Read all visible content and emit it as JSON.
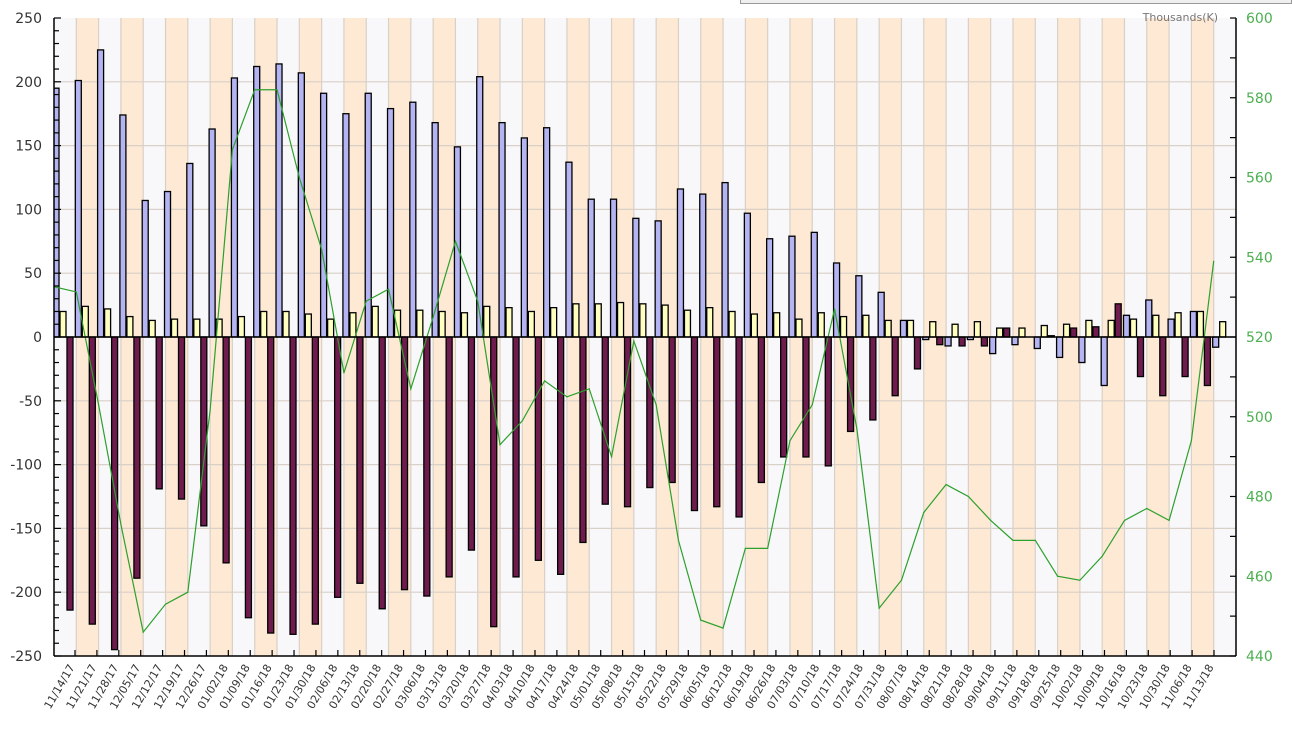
{
  "chart_data": {
    "type": "bar",
    "title": "",
    "xlabel": "",
    "ylabel": "",
    "y2label": "Thousands(K)",
    "ylim": [
      -250,
      250
    ],
    "y2lim": [
      440,
      600
    ],
    "yticks": [
      250,
      200,
      150,
      100,
      50,
      0,
      -50,
      -100,
      -150,
      -200,
      -250
    ],
    "y2ticks": [
      600,
      580,
      560,
      540,
      520,
      500,
      480,
      460,
      440
    ],
    "grid": true,
    "categories": [
      "11/14/17",
      "11/21/17",
      "11/28/17",
      "12/05/17",
      "12/12/17",
      "12/19/17",
      "12/26/17",
      "01/02/18",
      "01/09/18",
      "01/16/18",
      "01/23/18",
      "01/30/18",
      "02/06/18",
      "02/13/18",
      "02/20/18",
      "02/27/18",
      "03/06/18",
      "03/13/18",
      "03/20/18",
      "03/27/18",
      "04/03/18",
      "04/10/18",
      "04/17/18",
      "04/24/18",
      "05/01/18",
      "05/08/18",
      "05/15/18",
      "05/22/18",
      "05/29/18",
      "06/05/18",
      "06/12/18",
      "06/19/18",
      "06/26/18",
      "07/03/18",
      "07/10/18",
      "07/17/18",
      "07/24/18",
      "07/31/18",
      "08/07/18",
      "08/14/18",
      "08/21/18",
      "08/28/18",
      "09/04/18",
      "09/11/18",
      "09/18/18",
      "09/25/18",
      "10/02/18",
      "10/09/18",
      "10/16/18",
      "10/23/18",
      "10/30/18",
      "11/06/18",
      "11/13/18"
    ],
    "series": [
      {
        "type": "bar",
        "axis": "left",
        "color": "#b4b4f2",
        "values": [
          195,
          201,
          225,
          174,
          107,
          114,
          136,
          163,
          203,
          212,
          214,
          207,
          191,
          175,
          191,
          179,
          184,
          168,
          149,
          204,
          168,
          156,
          164,
          137,
          108,
          108,
          93,
          91,
          116,
          112,
          121,
          97,
          77,
          79,
          82,
          58,
          48,
          35,
          13,
          -2,
          -7,
          -2,
          -13,
          -6,
          -9,
          -16,
          -20,
          -38,
          17,
          29,
          14,
          20,
          -8
        ]
      },
      {
        "type": "bar",
        "axis": "left",
        "color": "#ffffc0",
        "values": [
          20,
          24,
          22,
          16,
          13,
          14,
          14,
          14,
          16,
          20,
          20,
          18,
          14,
          19,
          24,
          21,
          21,
          20,
          19,
          24,
          23,
          20,
          23,
          26,
          26,
          27,
          26,
          25,
          21,
          23,
          20,
          18,
          19,
          14,
          19,
          16,
          17,
          13,
          13,
          12,
          10,
          12,
          7,
          7,
          9,
          10,
          13,
          13,
          14,
          17,
          19,
          20,
          12
        ]
      },
      {
        "type": "bar",
        "axis": "left",
        "color": "#6e1b4e",
        "values": [
          -214,
          -225,
          -245,
          -189,
          -119,
          -127,
          -148,
          -177,
          -220,
          -232,
          -233,
          -225,
          -204,
          -193,
          -213,
          -198,
          -203,
          -188,
          -167,
          -227,
          -188,
          -175,
          -186,
          -161,
          -131,
          -133,
          -118,
          -114,
          -136,
          -133,
          -141,
          -114,
          -94,
          -94,
          -101,
          -74,
          -65,
          -46,
          -25,
          -6,
          -7,
          -7,
          7,
          0,
          1,
          7,
          8,
          26,
          -31,
          -46,
          -31,
          -38,
          0
        ]
      },
      {
        "type": "line",
        "axis": "right",
        "color": "#2ca02c",
        "values": [
          532.6,
          531.3,
          503,
          473,
          446,
          453,
          456,
          501.6,
          567,
          582,
          582,
          560,
          542,
          511,
          529,
          532,
          507,
          525,
          544,
          529,
          493,
          499,
          509,
          505,
          507,
          490,
          519,
          503,
          469,
          449,
          447,
          467,
          467,
          494,
          503,
          527,
          497,
          452,
          459,
          476,
          483,
          480,
          474,
          469,
          469,
          460,
          459,
          465,
          474,
          477,
          474,
          494,
          539
        ]
      }
    ],
    "stripe_colors": [
      "#f8f8fa",
      "#fde9d4"
    ],
    "legend": "none"
  }
}
